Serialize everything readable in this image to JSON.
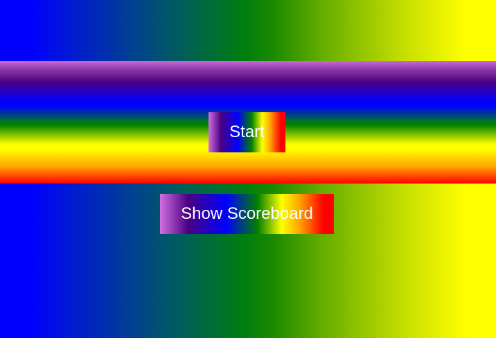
{
  "menu": {
    "start_label": "Start",
    "scoreboard_label": "Show Scoreboard"
  }
}
